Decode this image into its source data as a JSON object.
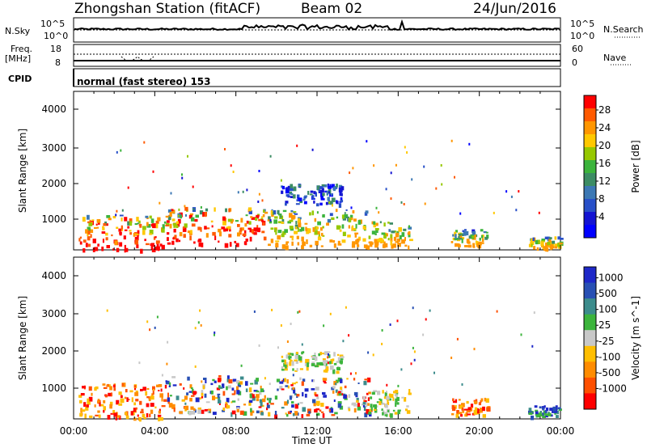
{
  "header": {
    "station": "Zhongshan Station (fitACF)",
    "beam": "Beam 02",
    "date": "24/Jun/2016"
  },
  "top_panels": {
    "nsky_label": "N.Sky",
    "nsky_ticks": [
      "10^5",
      "10^0"
    ],
    "nsearch_label": "N.Search",
    "nsearch_ticks": [
      "10^5",
      "10^0"
    ],
    "freq_label": "Freq.",
    "freq_unit": "[MHz]",
    "freq_ticks": [
      "18",
      "8"
    ],
    "nave_label": "Nave",
    "nave_ticks": [
      "60",
      "0"
    ],
    "cpid_label": "CPID",
    "cpid_text": "normal (fast stereo) 153"
  },
  "chart_data": [
    {
      "type": "heatmap",
      "ylabel": "Slant Range [km]",
      "xlabel": "Time UT",
      "xlim": [
        "00:00",
        "24:00"
      ],
      "ylim": [
        180,
        4500
      ],
      "y_ticks": [
        "4000",
        "3000",
        "2000",
        "1000"
      ],
      "x_ticks": [
        "00:00",
        "04:00",
        "08:00",
        "12:00",
        "16:00",
        "20:00",
        "00:00"
      ],
      "colorbar": {
        "label": "Power [dB]",
        "ticks": [
          "28",
          "24",
          "20",
          "16",
          "12",
          "8",
          "4"
        ],
        "colors": [
          "#ff0000",
          "#ff5a00",
          "#ff9600",
          "#ffc800",
          "#96c800",
          "#3cb43c",
          "#3c8c64",
          "#3c78b4",
          "#2850c8",
          "#1414d2",
          "#0000ff"
        ]
      },
      "regions": [
        {
          "t0": 0.2,
          "t1": 4.5,
          "r0": 200,
          "r1": 1150,
          "level": "high"
        },
        {
          "t0": 4.5,
          "t1": 9.5,
          "r0": 350,
          "r1": 1350,
          "level": "high"
        },
        {
          "t0": 9.5,
          "t1": 14.6,
          "r0": 300,
          "r1": 1300,
          "level": "mid"
        },
        {
          "t0": 10.2,
          "t1": 13.2,
          "r0": 1450,
          "r1": 2000,
          "level": "low"
        },
        {
          "t0": 14.5,
          "t1": 16.6,
          "r0": 300,
          "r1": 1000,
          "level": "mid"
        },
        {
          "t0": 18.6,
          "t1": 20.4,
          "r0": 300,
          "r1": 750,
          "level": "mid"
        },
        {
          "t0": 22.4,
          "t1": 24.0,
          "r0": 250,
          "r1": 550,
          "level": "mid"
        }
      ]
    },
    {
      "type": "heatmap",
      "ylabel": "Slant Range [km]",
      "xlabel": "Time UT",
      "xlim": [
        "00:00",
        "24:00"
      ],
      "ylim": [
        180,
        4500
      ],
      "y_ticks": [
        "4000",
        "3000",
        "2000",
        "1000"
      ],
      "x_ticks": [
        "00:00",
        "04:00",
        "08:00",
        "12:00",
        "16:00",
        "20:00",
        "00:00"
      ],
      "colorbar": {
        "label": "Velocity [m s^-1]",
        "ticks": [
          "1000",
          "500",
          "100",
          "25",
          "-25",
          "-100",
          "-500",
          "-1000"
        ],
        "colors": [
          "#1e28c8",
          "#2850b4",
          "#3c8c8c",
          "#3cb43c",
          "#c8c8c8",
          "#ffbe00",
          "#ff8c00",
          "#ff5000",
          "#ff0000"
        ]
      },
      "regions": [
        {
          "t0": 0.2,
          "t1": 4.5,
          "r0": 200,
          "r1": 1150,
          "level": "neg"
        },
        {
          "t0": 4.5,
          "t1": 9.5,
          "r0": 350,
          "r1": 1350,
          "level": "mix"
        },
        {
          "t0": 9.5,
          "t1": 14.6,
          "r0": 300,
          "r1": 1300,
          "level": "mix"
        },
        {
          "t0": 10.2,
          "t1": 13.2,
          "r0": 1450,
          "r1": 2000,
          "level": "zero"
        },
        {
          "t0": 14.5,
          "t1": 16.6,
          "r0": 300,
          "r1": 1000,
          "level": "zero"
        },
        {
          "t0": 18.6,
          "t1": 20.4,
          "r0": 300,
          "r1": 750,
          "level": "neg"
        },
        {
          "t0": 22.4,
          "t1": 24.0,
          "r0": 250,
          "r1": 550,
          "level": "pos"
        }
      ]
    }
  ]
}
